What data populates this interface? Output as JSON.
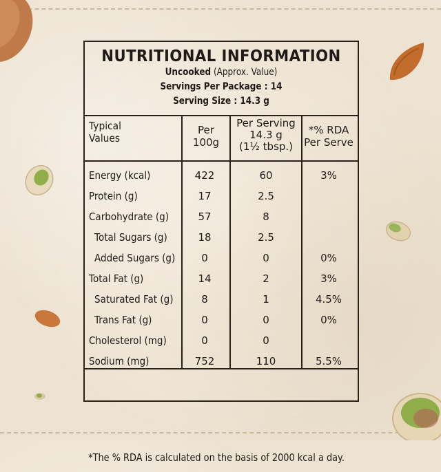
{
  "panel": {
    "title": "NUTRITIONAL INFORMATION",
    "uncooked": "Uncooked",
    "approx": " (Approx. Value)",
    "servings_per_package": "Servings Per Package : 14",
    "serving_size": "Serving Size : 14.3 g",
    "footnote": "*The % RDA is calculated on the basis of 2000 kcal a day."
  },
  "table": {
    "headers": {
      "col1_line1": "Typical",
      "col1_line2": "Values",
      "col2_line1": "Per",
      "col2_line2": "100g",
      "col3_line1": "Per Serving",
      "col3_line2": "14.3 g",
      "col3_line3": "(1½ tbsp.)",
      "col4_line1": "*% RDA",
      "col4_line2": "Per Serve"
    },
    "rows": [
      {
        "label": "Energy (kcal)",
        "per100": "422",
        "perServing": "60",
        "rda": "3%"
      },
      {
        "label": "Protein (g)",
        "per100": "17",
        "perServing": "2.5",
        "rda": ""
      },
      {
        "label": "Carbohydrate (g)",
        "per100": "57",
        "perServing": "8",
        "rda": ""
      },
      {
        "label": "Total Sugars (g)",
        "per100": "18",
        "perServing": "2.5",
        "rda": ""
      },
      {
        "label": "Added Sugars (g)",
        "per100": "0",
        "perServing": "0",
        "rda": "0%"
      },
      {
        "label": "Total Fat (g)",
        "per100": "14",
        "perServing": "2",
        "rda": "3%"
      },
      {
        "label": "Saturated Fat (g)",
        "per100": "8",
        "perServing": "1",
        "rda": "4.5%"
      },
      {
        "label": "Trans Fat (g)",
        "per100": "0",
        "perServing": "0",
        "rda": "0%"
      },
      {
        "label": "Cholesterol (mg)",
        "per100": "0",
        "perServing": "0",
        "rda": ""
      },
      {
        "label": "Sodium (mg)",
        "per100": "752",
        "perServing": "110",
        "rda": "5.5%"
      }
    ]
  },
  "colors": {
    "background": "#ede3d2",
    "ink": "#1f1a16",
    "almond": "#c97a3e",
    "pistachio_shell": "#e6d7b8",
    "pistachio_kernel": "#8fae4a"
  },
  "decorations": [
    "almond-icon",
    "pistachio-icon"
  ]
}
